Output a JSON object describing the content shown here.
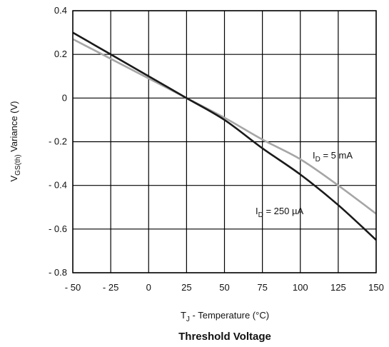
{
  "chart_data": {
    "type": "line",
    "title": "Threshold Voltage",
    "xlabel": {
      "main": "T",
      "sub": "J",
      "rest": " - Temperature (°C)"
    },
    "ylabel": {
      "main": "V",
      "sub": "GS(th)",
      "rest": " Variance (V)"
    },
    "xlim": [
      -50,
      150
    ],
    "ylim": [
      -0.8,
      0.4
    ],
    "grid": true,
    "x_ticks": [
      -50,
      -25,
      0,
      25,
      50,
      75,
      100,
      125,
      150
    ],
    "x_tick_labels": [
      "- 50",
      "- 25",
      "0",
      "25",
      "50",
      "75",
      "100",
      "125",
      "150"
    ],
    "y_ticks": [
      0.4,
      0.2,
      0,
      -0.2,
      -0.4,
      -0.6,
      -0.8
    ],
    "y_tick_labels": [
      "0.4",
      "0.2",
      "0",
      "- 0.2",
      "- 0.4",
      "- 0.6",
      "- 0.8"
    ],
    "series": [
      {
        "name": {
          "main": "I",
          "sub": "D",
          "rest": " = 250 µA"
        },
        "color": "#1a1a1a",
        "x": [
          -50,
          -25,
          0,
          25,
          50,
          75,
          100,
          125,
          150
        ],
        "y": [
          0.3,
          0.2,
          0.1,
          0.0,
          -0.1,
          -0.23,
          -0.35,
          -0.49,
          -0.65
        ]
      },
      {
        "name": {
          "main": "I",
          "sub": "D",
          "rest": " = 5 mA"
        },
        "color": "#a6a6a6",
        "x": [
          -50,
          -25,
          0,
          25,
          50,
          75,
          100,
          125,
          150
        ],
        "y": [
          0.27,
          0.18,
          0.09,
          0.0,
          -0.09,
          -0.19,
          -0.28,
          -0.4,
          -0.53
        ]
      }
    ]
  }
}
